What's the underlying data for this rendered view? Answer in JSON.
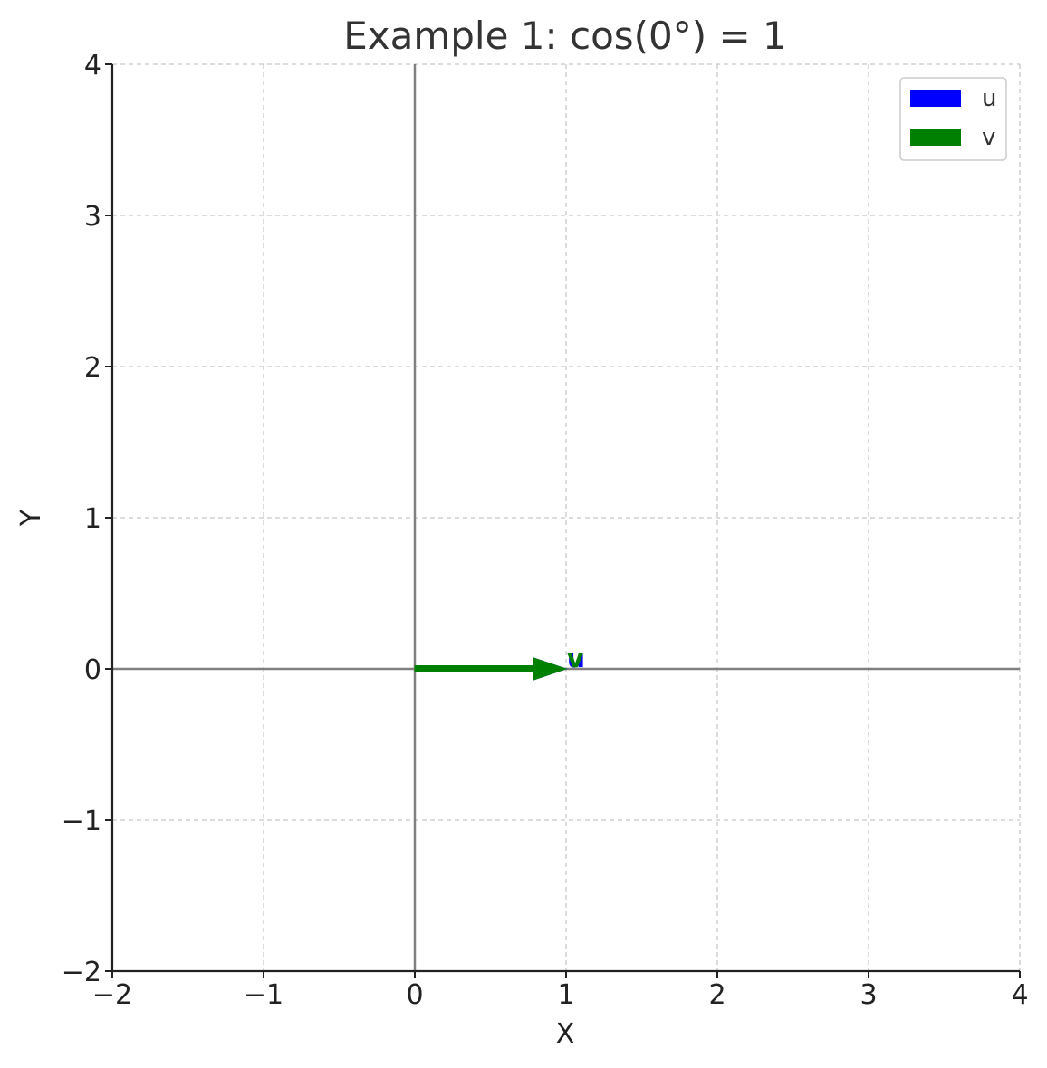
{
  "chart_data": {
    "type": "quiver",
    "title": "Example 1: cos(0°) = 1",
    "xlabel": "X",
    "ylabel": "Y",
    "xlim": [
      -2,
      4
    ],
    "ylim": [
      -2,
      4
    ],
    "xticks": [
      -2,
      -1,
      0,
      1,
      2,
      3,
      4
    ],
    "yticks": [
      -2,
      -1,
      0,
      1,
      2,
      3,
      4
    ],
    "xtick_labels": [
      "−2",
      "−1",
      "0",
      "1",
      "2",
      "3",
      "4"
    ],
    "ytick_labels": [
      "−2",
      "−1",
      "0",
      "1",
      "2",
      "3",
      "4"
    ],
    "grid": true,
    "legend_position": "top-right",
    "series": [
      {
        "name": "u",
        "label": "u",
        "color": "#0000ff",
        "origin": [
          0,
          0
        ],
        "vector": [
          1,
          0
        ]
      },
      {
        "name": "v",
        "label": "v",
        "color": "#008000",
        "origin": [
          0,
          0
        ],
        "vector": [
          1,
          0
        ]
      }
    ]
  }
}
